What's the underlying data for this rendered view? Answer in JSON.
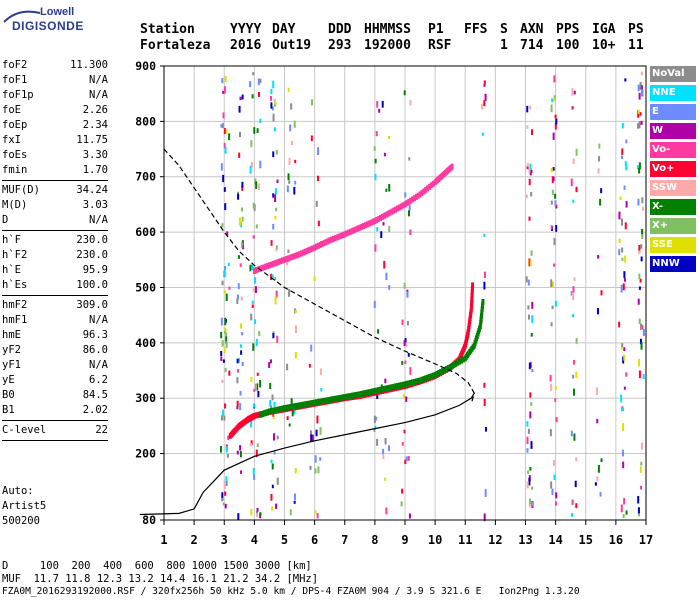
{
  "logo": {
    "line1": "Lowell",
    "line2": "DIGISONDE"
  },
  "header": {
    "labels": [
      "Station",
      "YYYY",
      "DAY",
      "DDD",
      "HHMMSS",
      "P1",
      "FFS",
      "S",
      "AXN",
      "PPS",
      "IGA",
      "PS"
    ],
    "values": [
      "Fortaleza",
      "2016",
      "Out19",
      "293",
      "192000",
      "RSF",
      "",
      "1",
      "714",
      "100",
      "10+",
      "11"
    ]
  },
  "params_group1": [
    {
      "label": "foF2",
      "value": "11.300"
    },
    {
      "label": "foF1",
      "value": "N/A"
    },
    {
      "label": "foF1p",
      "value": "N/A"
    },
    {
      "label": "foE",
      "value": "2.26"
    },
    {
      "label": "foEp",
      "value": "2.34"
    },
    {
      "label": "fxI",
      "value": "11.75"
    },
    {
      "label": "foEs",
      "value": "3.30"
    },
    {
      "label": "fmin",
      "value": "1.70"
    }
  ],
  "params_group2": [
    {
      "label": "MUF(D)",
      "value": "34.24"
    },
    {
      "label": "M(D)",
      "value": "3.03"
    },
    {
      "label": "D",
      "value": "N/A"
    }
  ],
  "params_group3": [
    {
      "label": "h`F",
      "value": "230.0"
    },
    {
      "label": "h`F2",
      "value": "230.0"
    },
    {
      "label": "h`E",
      "value": "95.9"
    },
    {
      "label": "h`Es",
      "value": "100.0"
    }
  ],
  "params_group4": [
    {
      "label": "hmF2",
      "value": "309.0"
    },
    {
      "label": "hmF1",
      "value": "N/A"
    },
    {
      "label": "hmE",
      "value": "96.3"
    },
    {
      "label": "yF2",
      "value": "86.0"
    },
    {
      "label": "yF1",
      "value": "N/A"
    },
    {
      "label": "yE",
      "value": "6.2"
    },
    {
      "label": "B0",
      "value": "84.5"
    },
    {
      "label": "B1",
      "value": "2.02"
    }
  ],
  "params_group5": [
    {
      "label": "C-level",
      "value": "22"
    }
  ],
  "auto": {
    "line1": "Auto:",
    "line2": "Artist5",
    "line3": "500200"
  },
  "bottom": {
    "d_line": "D     100  200  400  600  800 1000 1500 3000 [km]",
    "muf_line": "MUF  11.7 11.8 12.3 13.2 14.4 16.1 21.2 34.2 [MHz]",
    "file_line": "FZA0M_2016293192000.RSF / 320fx256h 50 kHz 5.0 km / DPS-4 FZA0M 904 / 3.9 S 321.6 E   Ion2Png 1.3.20"
  },
  "legend": [
    {
      "label": "NoVal",
      "color": "#8c8c8c"
    },
    {
      "label": "NNE",
      "color": "#00e0ff"
    },
    {
      "label": "E",
      "color": "#6d8cff"
    },
    {
      "label": "W",
      "color": "#b000a8"
    },
    {
      "label": "Vo-",
      "color": "#ff3aa0"
    },
    {
      "label": "Vo+",
      "color": "#ff0030"
    },
    {
      "label": "SSW",
      "color": "#ffaaaa"
    },
    {
      "label": "X-",
      "color": "#008000"
    },
    {
      "label": "X+",
      "color": "#80c060"
    },
    {
      "label": "SSE",
      "color": "#e0e000"
    },
    {
      "label": "NNW",
      "color": "#0000c0"
    }
  ],
  "chart_data": {
    "type": "scatter",
    "title": "",
    "xlabel": "",
    "ylabel": "",
    "xlim": [
      1,
      17
    ],
    "ylim": [
      80,
      900
    ],
    "x_ticks": [
      1,
      2,
      3,
      4,
      5,
      6,
      7,
      8,
      9,
      10,
      11,
      12,
      13,
      14,
      15,
      16,
      17
    ],
    "y_ticks": [
      80,
      200,
      300,
      400,
      500,
      600,
      700,
      800,
      900
    ],
    "grid": true,
    "series": [
      {
        "name": "Vo+",
        "color": "#ff0030",
        "points": [
          [
            3.2,
            232
          ],
          [
            3.5,
            250
          ],
          [
            3.8,
            262
          ],
          [
            4.0,
            268
          ],
          [
            4.5,
            275
          ],
          [
            5.0,
            280
          ],
          [
            5.5,
            285
          ],
          [
            6.0,
            290
          ],
          [
            6.5,
            295
          ],
          [
            7.0,
            300
          ],
          [
            7.5,
            304
          ],
          [
            8.0,
            310
          ],
          [
            8.5,
            316
          ],
          [
            9.0,
            322
          ],
          [
            9.5,
            330
          ],
          [
            10.0,
            340
          ],
          [
            10.5,
            355
          ],
          [
            10.8,
            370
          ],
          [
            11.0,
            395
          ],
          [
            11.1,
            420
          ],
          [
            11.2,
            460
          ],
          [
            11.25,
            510
          ]
        ]
      },
      {
        "name": "X-",
        "color": "#008000",
        "points": [
          [
            4.2,
            270
          ],
          [
            4.5,
            276
          ],
          [
            5.0,
            282
          ],
          [
            5.5,
            287
          ],
          [
            6.0,
            292
          ],
          [
            6.5,
            297
          ],
          [
            7.0,
            302
          ],
          [
            7.5,
            307
          ],
          [
            8.0,
            313
          ],
          [
            8.5,
            319
          ],
          [
            9.0,
            325
          ],
          [
            9.5,
            332
          ],
          [
            10.0,
            342
          ],
          [
            10.5,
            356
          ],
          [
            11.0,
            372
          ],
          [
            11.3,
            395
          ],
          [
            11.5,
            430
          ],
          [
            11.6,
            480
          ]
        ]
      },
      {
        "name": "Vo- (2nd hop)",
        "color": "#ff3aa0",
        "points": [
          [
            4.0,
            530
          ],
          [
            4.5,
            540
          ],
          [
            5.0,
            550
          ],
          [
            5.5,
            560
          ],
          [
            6.0,
            572
          ],
          [
            6.5,
            585
          ],
          [
            7.0,
            596
          ],
          [
            7.5,
            608
          ],
          [
            8.0,
            620
          ],
          [
            8.5,
            635
          ],
          [
            9.0,
            650
          ],
          [
            9.5,
            668
          ],
          [
            10.0,
            690
          ],
          [
            10.3,
            705
          ],
          [
            10.6,
            720
          ]
        ]
      },
      {
        "name": "Electron density profile",
        "color": "#000000",
        "points": [
          [
            0.2,
            90
          ],
          [
            1.5,
            92
          ],
          [
            2.0,
            100
          ],
          [
            2.3,
            130
          ],
          [
            3.0,
            170
          ],
          [
            4.0,
            195
          ],
          [
            5.0,
            210
          ],
          [
            6.0,
            223
          ],
          [
            7.0,
            234
          ],
          [
            8.0,
            245
          ],
          [
            9.0,
            256
          ],
          [
            10.0,
            270
          ],
          [
            10.8,
            287
          ],
          [
            11.2,
            300
          ],
          [
            11.3,
            309
          ]
        ]
      },
      {
        "name": "Model dashed",
        "color": "#000000",
        "points": [
          [
            1.0,
            750
          ],
          [
            1.5,
            720
          ],
          [
            2.0,
            680
          ],
          [
            2.5,
            640
          ],
          [
            3.0,
            600
          ],
          [
            3.5,
            565
          ],
          [
            4.0,
            540
          ],
          [
            5.0,
            500
          ],
          [
            6.0,
            470
          ],
          [
            7.0,
            440
          ],
          [
            8.0,
            410
          ],
          [
            9.0,
            385
          ],
          [
            10.0,
            362
          ],
          [
            10.7,
            345
          ],
          [
            11.1,
            328
          ],
          [
            11.3,
            309
          ],
          [
            11.2,
            290
          ]
        ]
      }
    ]
  }
}
